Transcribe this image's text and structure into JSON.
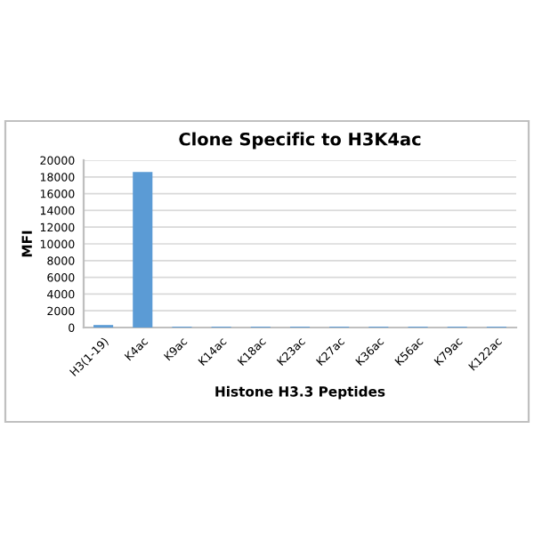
{
  "chart_data": {
    "type": "bar",
    "title": "Clone Specific to H3K4ac",
    "xlabel": "Histone H3.3 Peptides",
    "ylabel": "MFI",
    "categories": [
      "H3(1-19)",
      "K4ac",
      "K9ac",
      "K14ac",
      "K18ac",
      "K23ac",
      "K27ac",
      "K36ac",
      "K56ac",
      "K79ac",
      "K122ac"
    ],
    "values": [
      300,
      18600,
      100,
      100,
      100,
      100,
      100,
      100,
      100,
      100,
      100
    ],
    "color": "#5b9bd5",
    "ylim": [
      0,
      20000
    ],
    "yticks": [
      0,
      2000,
      4000,
      6000,
      8000,
      10000,
      12000,
      14000,
      16000,
      18000,
      20000
    ],
    "grid": "y",
    "legend": false
  }
}
